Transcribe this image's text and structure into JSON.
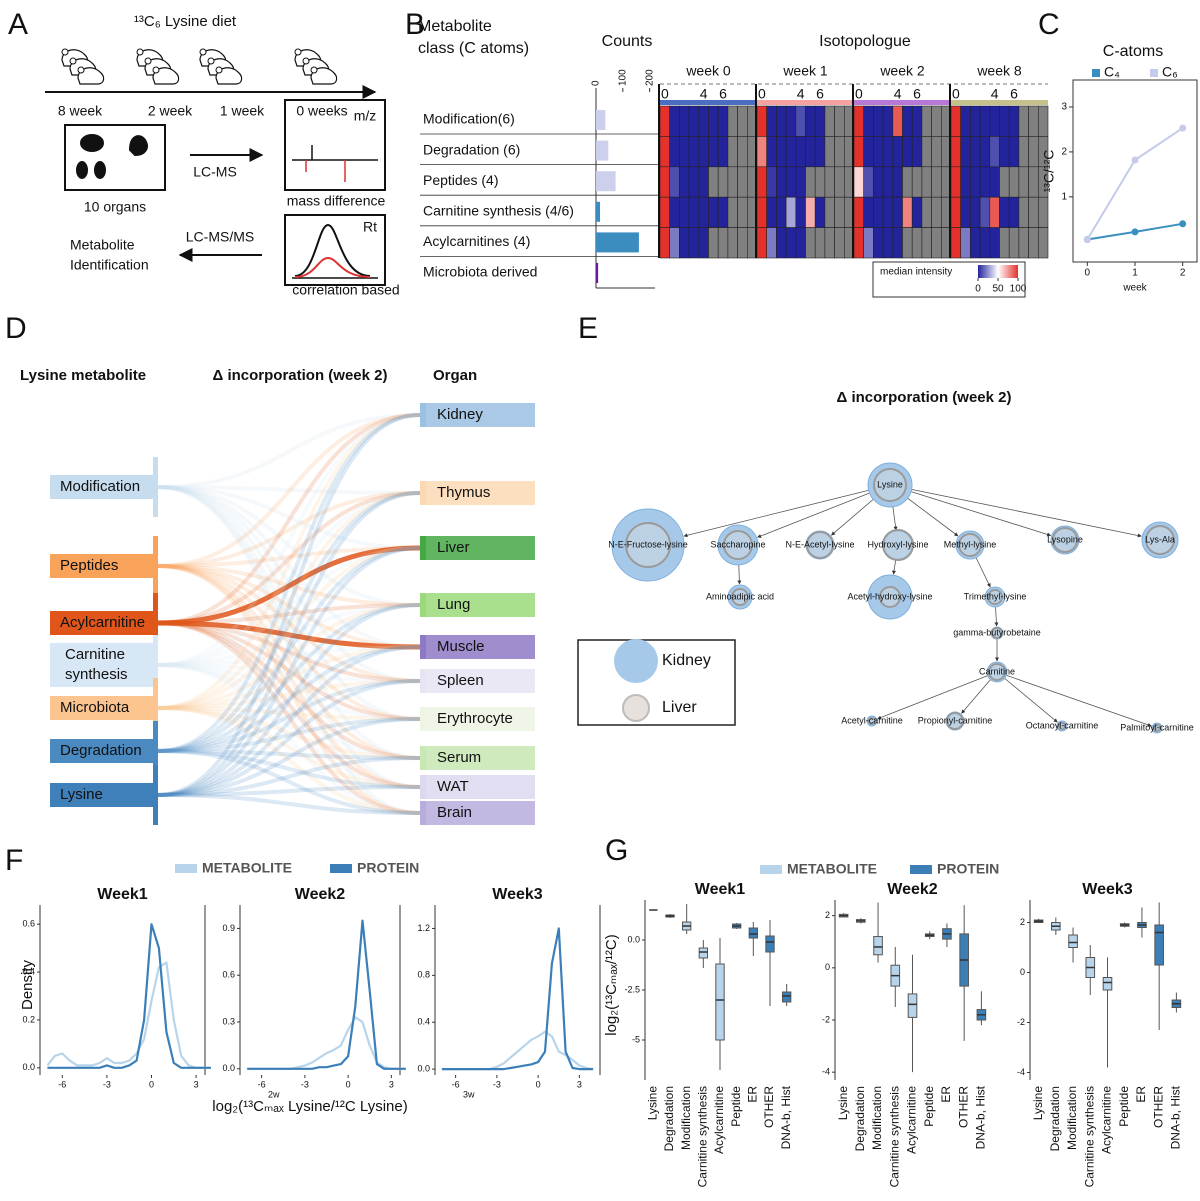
{
  "panel_labels": [
    "A",
    "B",
    "C",
    "D",
    "E",
    "F",
    "G"
  ],
  "panel_a": {
    "title": "¹³C₆ Lysine diet",
    "timepoints": [
      "8 week",
      "2 week",
      "1 week",
      "0 weeks"
    ],
    "organs": "10 organs",
    "lc_ms": "LC-MS",
    "mz": "m/z",
    "mass_difference": "mass difference",
    "lc_msms": "LC-MS/MS",
    "identification": [
      "Metabolite",
      "Identification"
    ],
    "rt": "Rt",
    "correlation": "correlation based"
  },
  "panel_d": {
    "left_title": "Lysine metabolite",
    "mid_title": "Δ incorporation (week 2)",
    "right_title": "Organ",
    "left_nodes": [
      {
        "label": "Modification",
        "color": "#c6dcef"
      },
      {
        "label": "Peptides",
        "color": "#f9a25a"
      },
      {
        "label": "Acylcarnitine",
        "color": "#e0561a"
      },
      {
        "label": [
          "Carnitine",
          "synthesis"
        ],
        "color": "#d8e7f5"
      },
      {
        "label": "Microbiota",
        "color": "#fcc590"
      },
      {
        "label": "Degradation",
        "color": "#4a8ac0"
      },
      {
        "label": "Lysine",
        "color": "#3f7fba"
      }
    ],
    "right_nodes": [
      {
        "label": "Kidney",
        "color": "#9ac0e2"
      },
      {
        "label": "Thymus",
        "color": "#fcd9b3"
      },
      {
        "label": "Liver",
        "color": "#45a845"
      },
      {
        "label": "Lung",
        "color": "#9bd97a"
      },
      {
        "label": "Muscle",
        "color": "#8e79c6"
      },
      {
        "label": "Spleen",
        "color": "#e8e4f4"
      },
      {
        "label": "Erythrocyte",
        "color": "#edf5e3"
      },
      {
        "label": "Serum",
        "color": "#c7e8b2"
      },
      {
        "label": "WAT",
        "color": "#ddd8f0"
      },
      {
        "label": "Brain",
        "color": "#b8acdc"
      }
    ]
  },
  "panel_e": {
    "title": "Δ incorporation (week 2)",
    "legend": [
      {
        "name": "Kidney",
        "color": "#a7c9e9"
      },
      {
        "name": "Liver",
        "color": "#e6e1dc"
      }
    ],
    "nodes": [
      {
        "label": "Lysine",
        "kidney": 22,
        "liver": 16
      },
      {
        "label": "N-E-Fructose-lysine",
        "kidney": 36,
        "liver": 22
      },
      {
        "label": "Saccharopine",
        "kidney": 20,
        "liver": 14
      },
      {
        "label": "N-E-Acetyl-lysine",
        "kidney": 14,
        "liver": 13
      },
      {
        "label": "Hydroxyl-lysine",
        "kidney": 14,
        "liver": 15
      },
      {
        "label": "Methyl-lysine",
        "kidney": 14,
        "liver": 11
      },
      {
        "label": "Lysopine",
        "kidney": 14,
        "liver": 12
      },
      {
        "label": "Lys-Ala",
        "kidney": 18,
        "liver": 14
      },
      {
        "label": "Aminoadipic acid",
        "kidney": 12,
        "liver": 8
      },
      {
        "label": "Acetyl-hydroxy-lysine",
        "kidney": 22,
        "liver": 10
      },
      {
        "label": "Trimethyl-lysine",
        "kidney": 10,
        "liver": 7
      },
      {
        "label": "gamma-butyrobetaine",
        "kidney": 6,
        "liver": 5
      },
      {
        "label": "Carnitine",
        "kidney": 10,
        "liver": 8
      },
      {
        "label": "Acetyl-carnitine",
        "kidney": 5,
        "liver": 3
      },
      {
        "label": "Propionyl-carnitine",
        "kidney": 9,
        "liver": 8
      },
      {
        "label": "Octanoyl-carnitine",
        "kidney": 5,
        "liver": 3
      },
      {
        "label": "Palmitoyl-carnitine",
        "kidney": 5,
        "liver": 3
      }
    ],
    "edges": [
      [
        0,
        1
      ],
      [
        0,
        2
      ],
      [
        0,
        3
      ],
      [
        0,
        4
      ],
      [
        0,
        5
      ],
      [
        0,
        6
      ],
      [
        0,
        7
      ],
      [
        2,
        8
      ],
      [
        4,
        9
      ],
      [
        5,
        10
      ],
      [
        10,
        11
      ],
      [
        11,
        12
      ],
      [
        12,
        13
      ],
      [
        12,
        14
      ],
      [
        12,
        15
      ],
      [
        12,
        16
      ]
    ]
  },
  "panel_f": {
    "xlabel": "log₂(¹³Cₘₐₓ Lysine/¹²C Lysine)"
  },
  "chart_data": [
    {
      "type": "hbar",
      "title": "Counts",
      "ylabel": [
        "Metabolite",
        "class (C atoms)"
      ],
      "categories": [
        "Modification(6)",
        "Degradation (6)",
        "Peptides (4)",
        "Carnitine synthesis (4/6)",
        "Acylcarnitines (4)",
        "Microbiota derived"
      ],
      "values": [
        35,
        46,
        73,
        15,
        160,
        8
      ],
      "colors": [
        "#cdd0ec",
        "#cdd0ec",
        "#cdd0ec",
        "#3b8dc0",
        "#3b8dc0",
        "#6a1b9a"
      ],
      "xlim": [
        0,
        220
      ],
      "xticks": [
        0,
        100,
        200
      ]
    },
    {
      "type": "heatmap",
      "title": "Isotopologue",
      "groups": [
        "week 0",
        "week 1",
        "week 2",
        "week 8"
      ],
      "group_colors": [
        "#4a6fc2",
        "#f3a1a1",
        "#b878d6",
        "#c6c08a"
      ],
      "column_ticks": [
        0,
        4,
        6
      ],
      "colors": [
        "#23239b",
        "#ffffff",
        "#e4312b"
      ],
      "na_color": "#808080",
      "colorbar": {
        "title": "median intensity",
        "ticks": [
          0,
          50,
          100
        ]
      },
      "values": [
        [
          [
            100,
            0,
            0,
            0,
            0,
            0,
            0,
            null,
            null,
            null
          ],
          [
            100,
            0,
            0,
            0,
            10,
            0,
            0,
            null,
            null,
            null
          ],
          [
            100,
            0,
            0,
            0,
            90,
            0,
            0,
            null,
            null,
            null
          ],
          [
            100,
            0,
            0,
            0,
            0,
            0,
            0,
            null,
            null,
            null
          ]
        ],
        [
          [
            100,
            0,
            0,
            0,
            0,
            0,
            0,
            null,
            null,
            null
          ],
          [
            80,
            0,
            0,
            0,
            0,
            0,
            0,
            null,
            null,
            null
          ],
          [
            100,
            0,
            0,
            0,
            0,
            0,
            0,
            null,
            null,
            null
          ],
          [
            100,
            0,
            0,
            0,
            10,
            0,
            0,
            null,
            null,
            null
          ]
        ],
        [
          [
            100,
            10,
            0,
            0,
            0,
            null,
            null,
            null,
            null,
            null
          ],
          [
            100,
            5,
            0,
            0,
            0,
            null,
            null,
            null,
            null,
            null
          ],
          [
            60,
            10,
            0,
            0,
            0,
            null,
            null,
            null,
            null,
            null
          ],
          [
            100,
            0,
            0,
            0,
            0,
            null,
            null,
            null,
            null,
            null
          ]
        ],
        [
          [
            100,
            0,
            0,
            0,
            0,
            0,
            0,
            null,
            null,
            null
          ],
          [
            100,
            0,
            0,
            30,
            0,
            70,
            0,
            null,
            null,
            null
          ],
          [
            100,
            0,
            0,
            0,
            0,
            80,
            0,
            null,
            null,
            null
          ],
          [
            100,
            0,
            0,
            10,
            90,
            0,
            0,
            null,
            null,
            null
          ]
        ],
        [
          [
            100,
            20,
            0,
            0,
            0,
            null,
            null,
            null,
            null,
            null
          ],
          [
            100,
            20,
            0,
            0,
            0,
            null,
            null,
            null,
            null,
            null
          ],
          [
            100,
            20,
            0,
            0,
            0,
            null,
            null,
            null,
            null,
            null
          ],
          [
            100,
            20,
            0,
            0,
            0,
            null,
            null,
            null,
            null,
            null
          ]
        ]
      ]
    },
    {
      "type": "line",
      "title": "C-atoms",
      "x": [
        0,
        1,
        2
      ],
      "xlim": [
        -0.3,
        2.3
      ],
      "xticks": [
        0,
        1,
        2
      ],
      "ylim": [
        -0.45,
        3.6
      ],
      "yticks": [
        1,
        2,
        3
      ],
      "xlabel": "week",
      "ylabel": "¹³C/¹²C",
      "series": [
        {
          "name": "C₄",
          "color": "#3a8fc1",
          "values": [
            0.05,
            0.22,
            0.4
          ]
        },
        {
          "name": "C₆",
          "color": "#c5cbe9",
          "values": [
            0.05,
            1.82,
            2.53
          ]
        }
      ]
    },
    {
      "type": "density",
      "title": "Week1",
      "ylabel": "Density",
      "x": [
        -7,
        -6.5,
        -6,
        -5.5,
        -5,
        -4.5,
        -4,
        -3.5,
        -3,
        -2.5,
        -2,
        -1.5,
        -1,
        -0.5,
        0,
        0.5,
        1,
        1.5,
        2,
        2.5,
        3,
        3.5,
        4
      ],
      "xlim": [
        -7.5,
        3.6
      ],
      "xticks": [
        -6,
        -3,
        0,
        3
      ],
      "ylim": [
        -0.03,
        0.68
      ],
      "yticks": [
        {
          "value": 0,
          "label": "0.0"
        },
        0.2,
        0.4,
        0.6
      ],
      "series": [
        {
          "name": "METABOLITE",
          "color": "#b7d4ea",
          "values": [
            0.01,
            0.05,
            0.06,
            0.03,
            0.01,
            0.01,
            0.01,
            0.02,
            0.04,
            0.02,
            0.02,
            0.03,
            0.06,
            0.12,
            0.28,
            0.42,
            0.44,
            0.2,
            0.05,
            0.01,
            0,
            0,
            0
          ]
        },
        {
          "name": "PROTEIN",
          "color": "#3c7fb8",
          "values": [
            0,
            0,
            0,
            0,
            0,
            0,
            0,
            0,
            0.01,
            0,
            0,
            0.01,
            0.03,
            0.2,
            0.6,
            0.5,
            0.15,
            0.02,
            0,
            0,
            0,
            0,
            0
          ]
        }
      ]
    },
    {
      "type": "density",
      "title": "Week2",
      "xlabel": "2w",
      "x": [
        -7,
        -6.5,
        -6,
        -5.5,
        -5,
        -4.5,
        -4,
        -3.5,
        -3,
        -2.5,
        -2,
        -1.5,
        -1,
        -0.5,
        0,
        0.5,
        1,
        1.5,
        2,
        2.5,
        3,
        3.5,
        4
      ],
      "xlim": [
        -7.5,
        3.6
      ],
      "xticks": [
        -6,
        -3,
        0,
        3
      ],
      "ylim": [
        -0.04,
        1.05
      ],
      "yticks": [
        {
          "value": 0,
          "label": "0.0"
        },
        0.3,
        0.6,
        0.9
      ],
      "series": [
        {
          "name": "METABOLITE",
          "color": "#b7d4ea",
          "values": [
            0,
            0,
            0,
            0,
            0,
            0,
            0,
            0.01,
            0.02,
            0.04,
            0.07,
            0.1,
            0.12,
            0.15,
            0.25,
            0.33,
            0.3,
            0.15,
            0.04,
            0.01,
            0,
            0,
            0
          ]
        },
        {
          "name": "PROTEIN",
          "color": "#3c7fb8",
          "values": [
            0,
            0,
            0,
            0,
            0,
            0,
            0,
            0,
            0,
            0,
            0.01,
            0.01,
            0.02,
            0.03,
            0.08,
            0.4,
            0.95,
            0.5,
            0.03,
            0,
            0,
            0,
            0
          ]
        }
      ]
    },
    {
      "type": "density",
      "title": "Week3",
      "xlabel": "3w",
      "x": [
        -7,
        -6.5,
        -6,
        -5.5,
        -5,
        -4.5,
        -4,
        -3.5,
        -3,
        -2.5,
        -2,
        -1.5,
        -1,
        -0.5,
        0,
        0.5,
        1,
        1.5,
        2,
        2.5,
        3,
        3.5,
        4
      ],
      "xlim": [
        -7.5,
        4.5
      ],
      "xticks": [
        -6,
        -3,
        0,
        3
      ],
      "ylim": [
        -0.05,
        1.4
      ],
      "yticks": [
        {
          "value": 0,
          "label": "0.0"
        },
        0.4,
        0.8,
        1.2
      ],
      "series": [
        {
          "name": "METABOLITE",
          "color": "#b7d4ea",
          "values": [
            0,
            0,
            0,
            0,
            0,
            0,
            0,
            0,
            0.02,
            0.05,
            0.1,
            0.15,
            0.2,
            0.25,
            0.28,
            0.32,
            0.28,
            0.15,
            0.12,
            0.08,
            0.03,
            0.01,
            0
          ]
        },
        {
          "name": "PROTEIN",
          "color": "#3c7fb8",
          "values": [
            0,
            0,
            0,
            0,
            0,
            0,
            0,
            0,
            0,
            0,
            0.01,
            0.02,
            0.03,
            0.04,
            0.06,
            0.15,
            0.9,
            1.2,
            0.15,
            0.01,
            0,
            0,
            0
          ]
        }
      ]
    },
    {
      "type": "box",
      "title": "Week1",
      "ylabel": "log₂(¹³Cₘₐₓ/¹²C)",
      "legend": [
        {
          "name": "METABOLITE",
          "color": "#b7d4ea"
        },
        {
          "name": "PROTEIN",
          "color": "#3c7fb8"
        }
      ],
      "categories": [
        "Lysine",
        "Degradation",
        "Modification",
        "Carnitine synthesis",
        "Acylcarnitine",
        "Peptide",
        "ER",
        "OTHER",
        "DNA-b, Hist"
      ],
      "colors": [
        "#b7d4ea",
        "#b7d4ea",
        "#b7d4ea",
        "#b7d4ea",
        "#b7d4ea",
        "#3c7fb8",
        "#3c7fb8",
        "#3c7fb8",
        "#3c7fb8"
      ],
      "ylim": [
        -7,
        2
      ],
      "yticks": [
        {
          "value": 0,
          "label": "0.0"
        },
        -2.5,
        -5
      ],
      "min": [
        1.5,
        1.1,
        0.3,
        -1.4,
        -6.5,
        0.55,
        -0.8,
        -3.3,
        -3.3
      ],
      "q1": [
        1.5,
        1.15,
        0.5,
        -0.9,
        -5,
        0.6,
        0.1,
        -0.6,
        -3.1
      ],
      "median": [
        1.5,
        1.2,
        0.7,
        -0.6,
        -3,
        0.7,
        0.3,
        -0.1,
        -2.8
      ],
      "q3": [
        1.5,
        1.25,
        0.9,
        -0.4,
        -1.2,
        0.8,
        0.6,
        0.2,
        -2.6
      ],
      "max": [
        1.5,
        1.3,
        1.8,
        0,
        0.1,
        0.85,
        0.9,
        1,
        -2.2
      ]
    },
    {
      "type": "box",
      "title": "Week2",
      "categories": [
        "Lysine",
        "Degradation",
        "Modification",
        "Carnitine synthesis",
        "Acylcarnitine",
        "Peptide",
        "ER",
        "OTHER",
        "DNA-b, Hist"
      ],
      "colors": [
        "#b7d4ea",
        "#b7d4ea",
        "#b7d4ea",
        "#b7d4ea",
        "#b7d4ea",
        "#3c7fb8",
        "#3c7fb8",
        "#3c7fb8",
        "#3c7fb8"
      ],
      "ylim": [
        -4.3,
        2.6
      ],
      "yticks": [
        2,
        0,
        -2,
        -4
      ],
      "min": [
        2,
        1.7,
        0.2,
        -1.5,
        -4,
        1.1,
        0.8,
        -2.8,
        -2.2
      ],
      "q1": [
        1.95,
        1.75,
        0.5,
        -0.7,
        -1.9,
        1.2,
        1.1,
        -0.7,
        -2
      ],
      "median": [
        2,
        1.8,
        0.8,
        -0.3,
        -1.4,
        1.25,
        1.3,
        0.3,
        -1.8
      ],
      "q3": [
        2.05,
        1.85,
        1.2,
        0.1,
        -1,
        1.3,
        1.5,
        1.3,
        -1.6
      ],
      "max": [
        2.1,
        1.9,
        2.5,
        0.8,
        0.5,
        1.4,
        1.7,
        2.4,
        -0.9
      ]
    },
    {
      "type": "box",
      "title": "Week3",
      "categories": [
        "Lysine",
        "Degradation",
        "Modification",
        "Carnitine synthesis",
        "Acylcarnitine",
        "Peptide",
        "ER",
        "OTHER",
        "DNA-b, Hist"
      ],
      "colors": [
        "#b7d4ea",
        "#b7d4ea",
        "#b7d4ea",
        "#b7d4ea",
        "#b7d4ea",
        "#3c7fb8",
        "#3c7fb8",
        "#3c7fb8",
        "#3c7fb8"
      ],
      "ylim": [
        -4.3,
        2.9
      ],
      "yticks": [
        2,
        0,
        -2,
        -4
      ],
      "min": [
        2,
        1.5,
        0.4,
        -0.9,
        -3.8,
        1.8,
        1.4,
        -2.3,
        -1.6
      ],
      "q1": [
        2,
        1.7,
        1,
        -0.2,
        -0.7,
        1.85,
        1.8,
        0.3,
        -1.4
      ],
      "median": [
        2.05,
        1.85,
        1.2,
        0.2,
        -0.4,
        1.9,
        1.9,
        1.6,
        -1.25
      ],
      "q3": [
        2.1,
        2,
        1.5,
        0.6,
        -0.2,
        1.95,
        2,
        1.9,
        -1.1
      ],
      "max": [
        2.15,
        2.2,
        1.8,
        1.1,
        0.6,
        2,
        2.6,
        2.8,
        -0.8
      ]
    }
  ]
}
